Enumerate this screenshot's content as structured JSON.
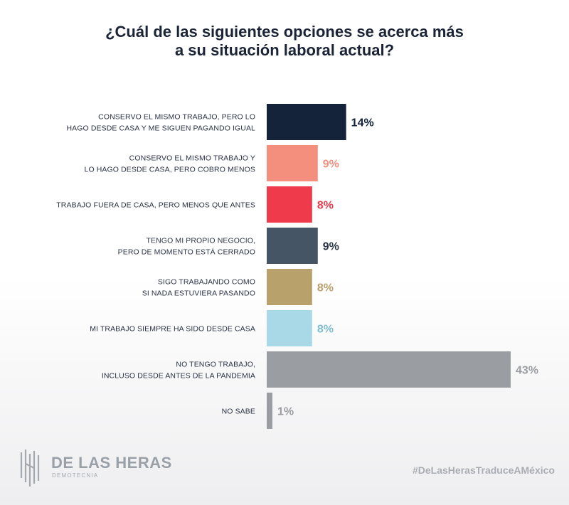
{
  "title": {
    "line1": "¿Cuál de las siguientes opciones se acerca más",
    "line2": "a su situación laboral actual?"
  },
  "chart_data": {
    "type": "bar",
    "orientation": "horizontal",
    "title": "¿Cuál de las siguientes opciones se acerca más a su situación laboral actual?",
    "categories": [
      [
        "CONSERVO EL MISMO TRABAJO, PERO LO",
        "HAGO DESDE CASA Y ME SIGUEN PAGANDO IGUAL"
      ],
      [
        "CONSERVO EL MISMO TRABAJO Y",
        "LO HAGO DESDE CASA, PERO COBRO MENOS"
      ],
      [
        "TRABAJO FUERA DE CASA, PERO MENOS QUE ANTES"
      ],
      [
        "TENGO MI PROPIO NEGOCIO,",
        "PERO DE MOMENTO ESTÁ CERRADO"
      ],
      [
        "SIGO TRABAJANDO COMO",
        "SI NADA ESTUVIERA PASANDO"
      ],
      [
        "MI TRABAJO SIEMPRE HA SIDO DESDE CASA"
      ],
      [
        "NO TENGO TRABAJO,",
        "INCLUSO DESDE ANTES DE LA PANDEMIA"
      ],
      [
        "NO SABE"
      ]
    ],
    "values": [
      14,
      9,
      8,
      9,
      8,
      8,
      43,
      1
    ],
    "value_labels": [
      "14%",
      "9%",
      "8%",
      "9%",
      "8%",
      "8%",
      "43%",
      "1%"
    ],
    "colors": [
      "#14233a",
      "#f48f7e",
      "#ee3a4a",
      "#465566",
      "#b9a16b",
      "#a9d9e6",
      "#9a9da2",
      "#9a9da2"
    ],
    "label_colors": [
      "#14233a",
      "#f48f7e",
      "#ee3a4a",
      "#2a3345",
      "#b9a16b",
      "#7dbfd1",
      "#9a9da2",
      "#9a9da2"
    ],
    "xlim": [
      0,
      43
    ]
  },
  "footer": {
    "brand": "DE LAS HERAS",
    "brand_sub": "DEMOTECNIA",
    "hashtag": "#DeLasHerasTraduceAMéxico"
  }
}
